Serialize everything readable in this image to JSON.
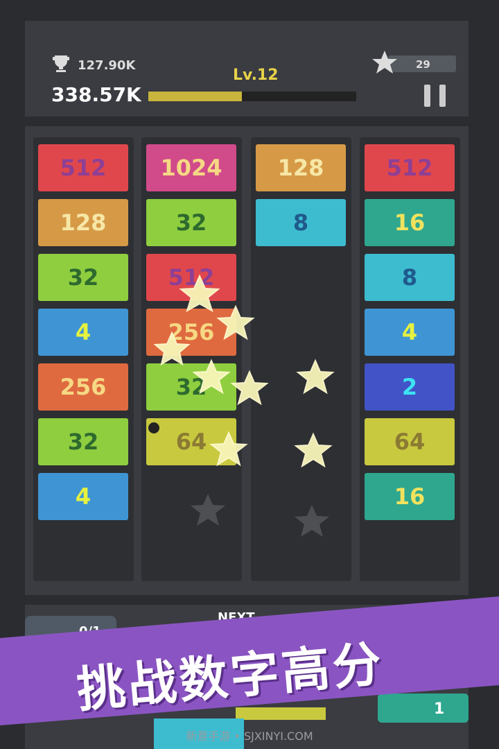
{
  "header": {
    "best_score": "127.90K",
    "score": "338.57K",
    "level": "Lv.12",
    "stars": "29"
  },
  "columns": [
    {
      "tiles": [
        {
          "value": "512",
          "color": "#e0474c",
          "text_color": "#8e3f95"
        },
        {
          "value": "128",
          "color": "#d69a47",
          "text_color": "#f7e7a6"
        },
        {
          "value": "32",
          "color": "#8fce3f",
          "text_color": "#2e6a2e"
        },
        {
          "value": "4",
          "color": "#3f95d4",
          "text_color": "#e6f23f"
        },
        {
          "value": "256",
          "color": "#df6a3f",
          "text_color": "#f6d884"
        },
        {
          "value": "32",
          "color": "#8fce3f",
          "text_color": "#2e6a2e"
        },
        {
          "value": "4",
          "color": "#3f95d4",
          "text_color": "#e6f23f"
        }
      ]
    },
    {
      "tiles": [
        {
          "value": "1024",
          "color": "#d14b8a",
          "text_color": "#f6d884"
        },
        {
          "value": "32",
          "color": "#8fce3f",
          "text_color": "#2e6a2e"
        },
        {
          "value": "512",
          "color": "#e0474c",
          "text_color": "#8e3f95"
        },
        {
          "value": "256",
          "color": "#df6a3f",
          "text_color": "#f6d884"
        },
        {
          "value": "32",
          "color": "#8fce3f",
          "text_color": "#2e6a2e"
        },
        {
          "value": "64",
          "color": "#c8c93f",
          "text_color": "#8b7a33"
        }
      ]
    },
    {
      "tiles": [
        {
          "value": "128",
          "color": "#d69a47",
          "text_color": "#f7e7a6"
        },
        {
          "value": "8",
          "color": "#3dbcd0",
          "text_color": "#1f5a8c"
        }
      ]
    },
    {
      "tiles": [
        {
          "value": "512",
          "color": "#e0474c",
          "text_color": "#8e3f95"
        },
        {
          "value": "16",
          "color": "#2fa78f",
          "text_color": "#f0e25e"
        },
        {
          "value": "8",
          "color": "#3dbcd0",
          "text_color": "#1f5a8c"
        },
        {
          "value": "4",
          "color": "#3f95d4",
          "text_color": "#e6f23f"
        },
        {
          "value": "2",
          "color": "#4153c6",
          "text_color": "#3ce2f2"
        },
        {
          "value": "64",
          "color": "#c8c93f",
          "text_color": "#8b7a33"
        },
        {
          "value": "16",
          "color": "#2fa78f",
          "text_color": "#f0e25e"
        }
      ]
    }
  ],
  "bottom": {
    "next_label": "NEXT",
    "tool_count": "0/1",
    "extra_count": "1"
  },
  "banner": {
    "text": "挑战数字高分"
  },
  "watermark": "新意手游 • SJXINYI.COM"
}
